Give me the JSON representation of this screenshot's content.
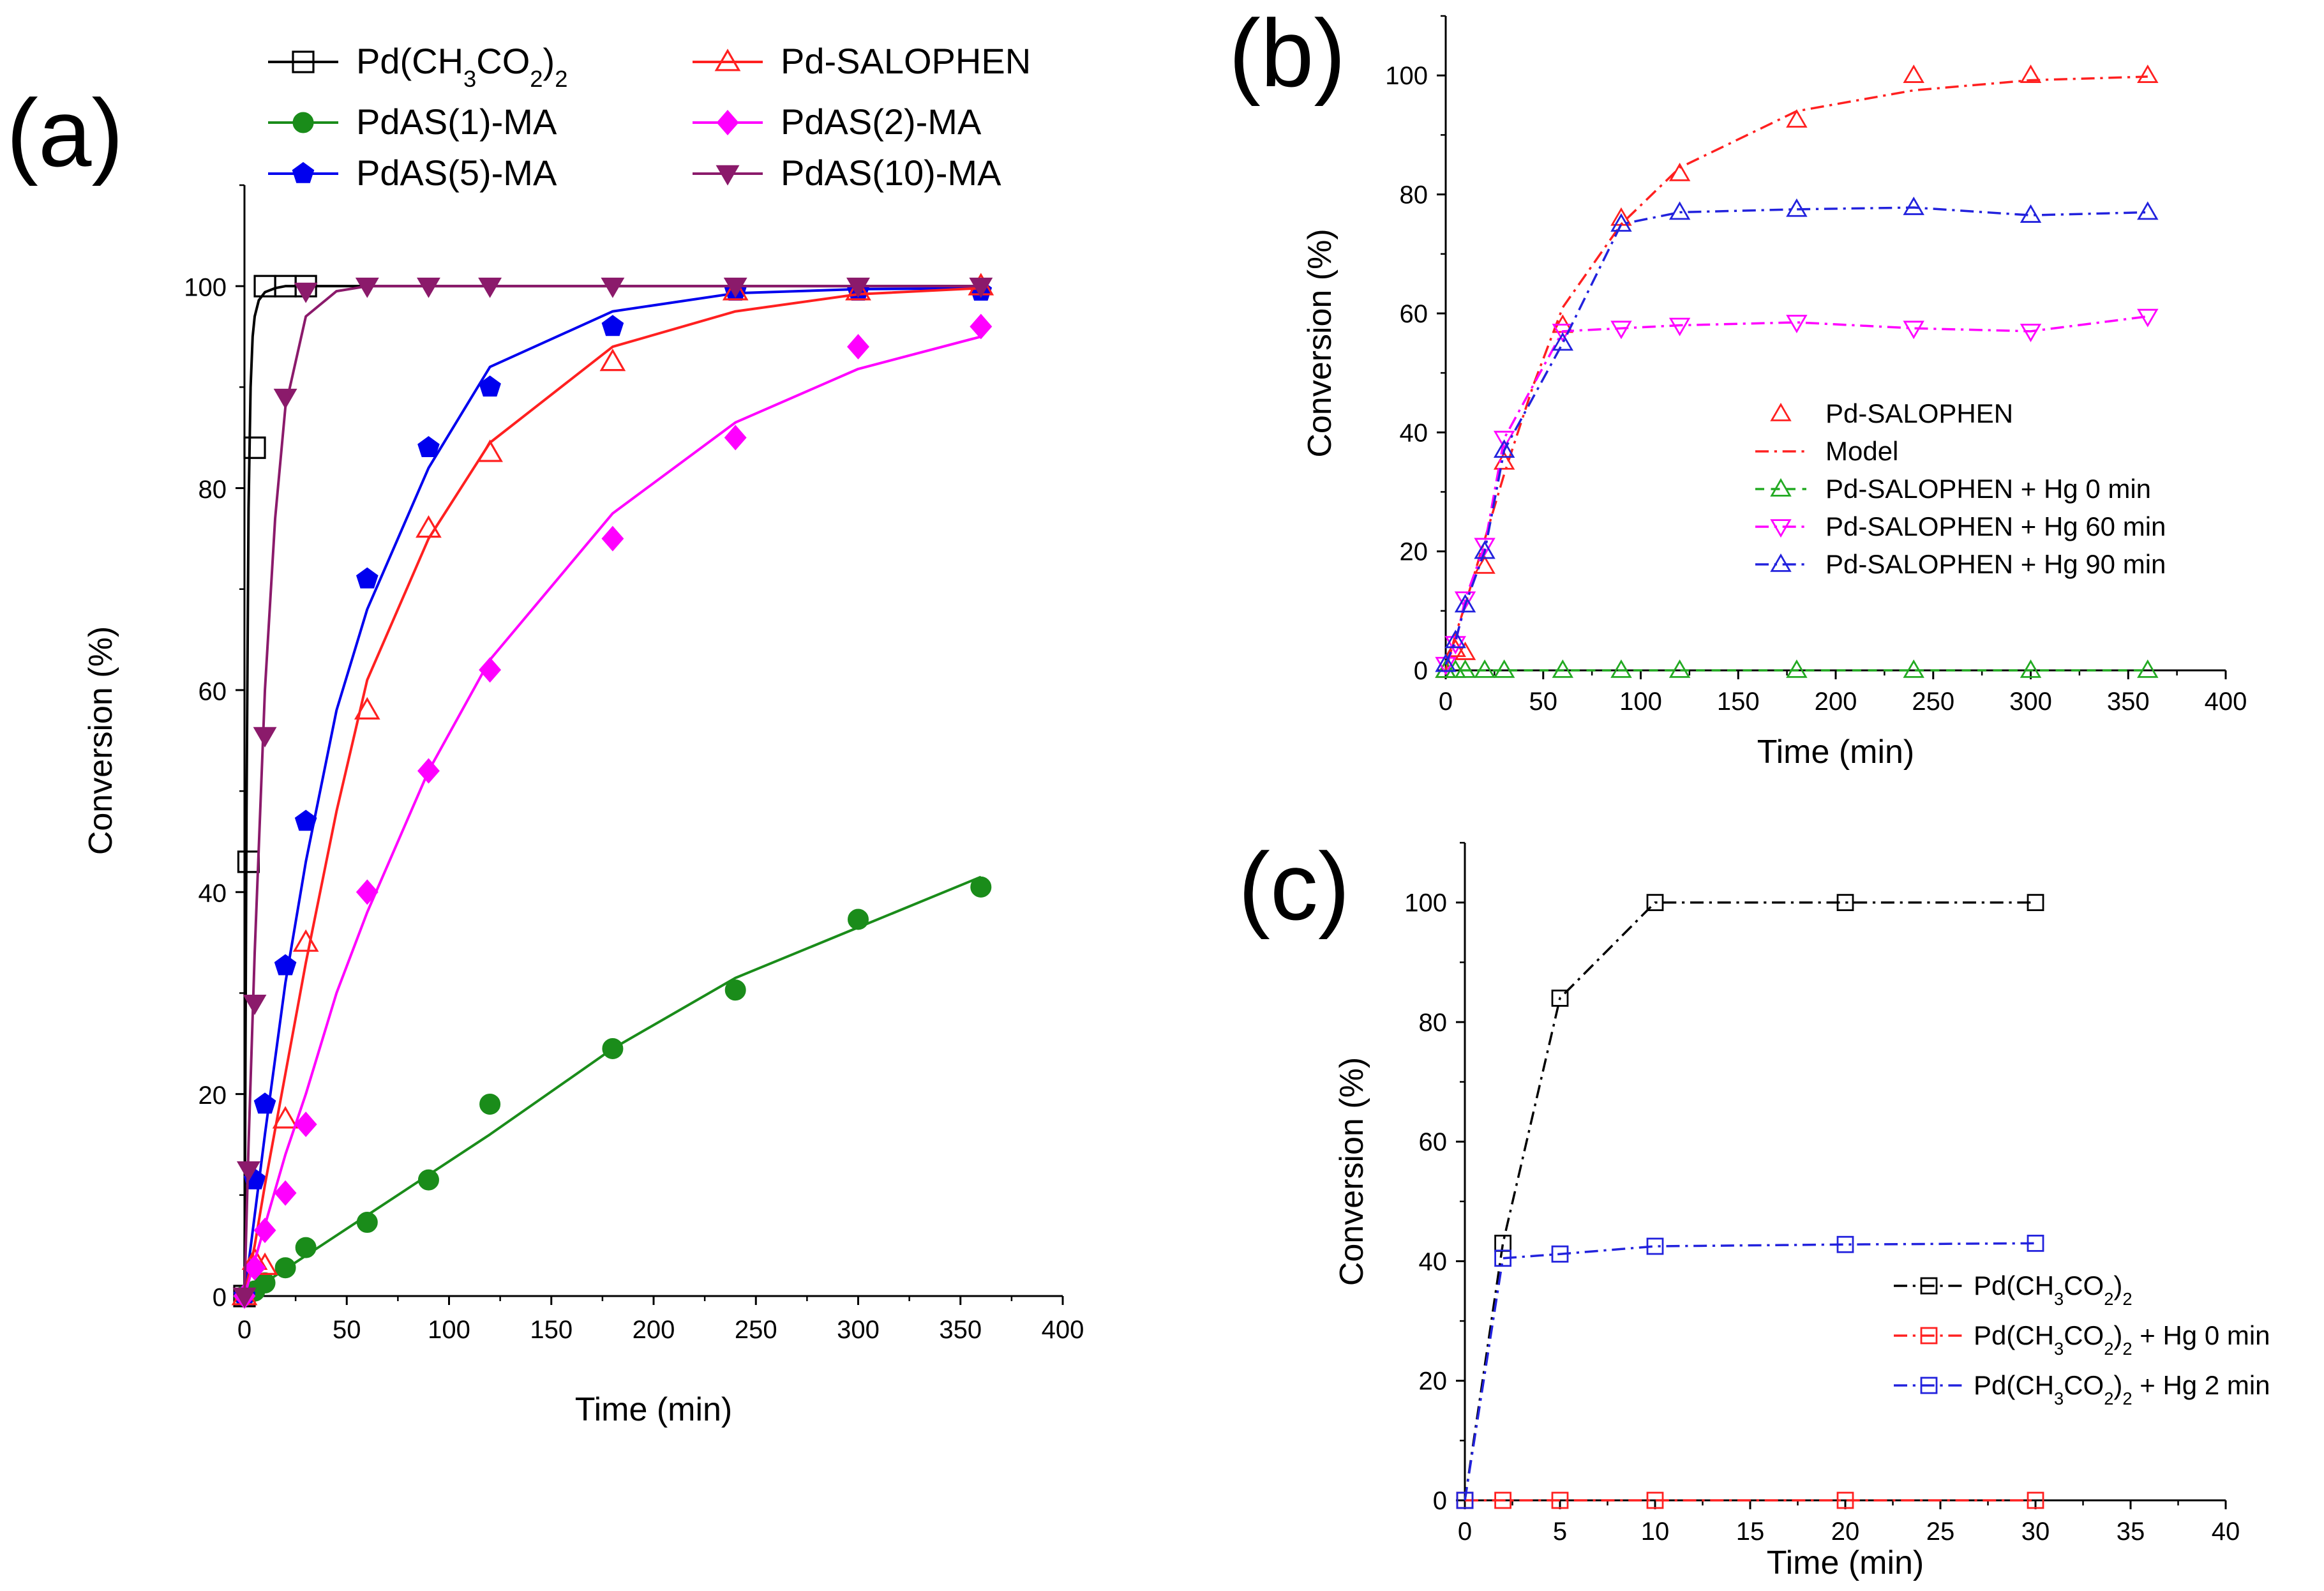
{
  "chart_data": [
    {
      "panel": "(a)",
      "type": "scatter",
      "xlabel": "Time (min)",
      "ylabel": "Conversion (%)",
      "xlim": [
        0,
        400
      ],
      "ylim": [
        0,
        110
      ],
      "xticks": [
        0,
        50,
        100,
        150,
        200,
        250,
        300,
        350,
        400
      ],
      "yticks": [
        0,
        20,
        40,
        60,
        80,
        100
      ],
      "legend": "top, two columns",
      "series": [
        {
          "name": "Pd(CH3CO2)2",
          "label_main": "Pd(CH",
          "label_sub1": "3",
          "label_mid": "CO",
          "label_sub2": "2",
          "label_close": ")",
          "label_sub3": "2",
          "marker": "square-open",
          "color": "#000000",
          "x": [
            0,
            2,
            5,
            10,
            20,
            30
          ],
          "y": [
            0,
            43,
            84,
            100,
            100,
            100
          ],
          "fit_x": [
            0,
            1,
            2,
            3,
            4,
            5,
            7,
            10,
            15,
            20,
            30,
            360
          ],
          "fit_y": [
            0,
            48,
            78,
            90,
            95,
            97,
            98.6,
            99.4,
            99.8,
            100,
            100,
            100
          ]
        },
        {
          "name": "PdAS(1)-MA",
          "marker": "circle-filled",
          "color": "#1a8c1a",
          "x": [
            0,
            5,
            10,
            20,
            30,
            60,
            90,
            120,
            180,
            240,
            300,
            360
          ],
          "y": [
            0,
            0.5,
            1.3,
            2.8,
            4.8,
            7.3,
            11.5,
            19,
            24.5,
            30.3,
            37.3,
            40.5
          ],
          "fit_x": [
            0,
            60,
            120,
            180,
            240,
            300,
            360
          ],
          "fit_y": [
            0,
            8,
            16,
            24.5,
            31.5,
            36.5,
            41.5
          ]
        },
        {
          "name": "PdAS(5)-MA",
          "marker": "pentagon-filled",
          "color": "#0000ee",
          "x": [
            0,
            5,
            10,
            20,
            30,
            60,
            90,
            120,
            180,
            240,
            300,
            360
          ],
          "y": [
            0,
            11.5,
            19,
            32.7,
            47,
            71,
            84,
            90,
            96,
            99.5,
            99.5,
            99.5
          ],
          "fit_x": [
            0,
            5,
            10,
            20,
            30,
            45,
            60,
            90,
            120,
            180,
            240,
            300,
            360
          ],
          "fit_y": [
            0,
            8,
            16,
            31,
            43,
            58,
            68,
            82,
            92,
            97.5,
            99.3,
            99.7,
            99.8
          ]
        },
        {
          "name": "Pd-SALOPHEN",
          "marker": "triangle-open",
          "color": "#ff2020",
          "x": [
            0,
            5,
            10,
            20,
            30,
            60,
            90,
            120,
            180,
            240,
            300,
            360
          ],
          "y": [
            0,
            3.5,
            3,
            17.5,
            35,
            58,
            76,
            83.5,
            92.5,
            99.5,
            99.5,
            100
          ],
          "fit_x": [
            0,
            5,
            10,
            20,
            30,
            45,
            60,
            90,
            120,
            180,
            240,
            300,
            360
          ],
          "fit_y": [
            0,
            5,
            11,
            22,
            33,
            48,
            61,
            75,
            84.5,
            94,
            97.5,
            99.2,
            99.8
          ]
        },
        {
          "name": "PdAS(2)-MA",
          "marker": "diamond-filled",
          "color": "#ff00ff",
          "x": [
            0,
            5,
            10,
            20,
            30,
            60,
            90,
            120,
            180,
            240,
            300,
            360
          ],
          "y": [
            0,
            2.8,
            6.5,
            10.2,
            17,
            40,
            52,
            62,
            75,
            85,
            94,
            96
          ],
          "fit_x": [
            0,
            10,
            20,
            30,
            45,
            60,
            90,
            120,
            180,
            240,
            300,
            360
          ],
          "fit_y": [
            0,
            7,
            14,
            20,
            30,
            38,
            52,
            63,
            77.5,
            86.5,
            91.8,
            95
          ]
        },
        {
          "name": "PdAS(10)-MA",
          "marker": "triangle-down-filled",
          "color": "#8b1a6b",
          "x": [
            0,
            2,
            5,
            10,
            20,
            30,
            60,
            90,
            120,
            180,
            240,
            300,
            360
          ],
          "y": [
            0,
            12.5,
            29,
            55.5,
            89,
            99.5,
            100,
            100,
            100,
            100,
            100,
            100,
            100
          ],
          "fit_x": [
            0,
            2,
            5,
            10,
            15,
            20,
            30,
            45,
            60,
            90,
            360
          ],
          "fit_y": [
            0,
            15,
            34,
            60,
            77,
            88,
            97,
            99.5,
            100,
            100,
            100
          ]
        }
      ]
    },
    {
      "panel": "(b)",
      "type": "line",
      "xlabel": "Time (min)",
      "ylabel": "Conversion (%)",
      "xlim": [
        0,
        400
      ],
      "ylim": [
        0,
        110
      ],
      "xticks": [
        0,
        50,
        100,
        150,
        200,
        250,
        300,
        350,
        400
      ],
      "yticks": [
        0,
        20,
        40,
        60,
        80,
        100
      ],
      "legend": "center",
      "series": [
        {
          "name": "Pd-SALOPHEN",
          "marker": "triangle-open",
          "color": "#ff2020",
          "line": "none",
          "x": [
            0,
            5,
            10,
            20,
            30,
            60,
            90,
            120,
            180,
            240,
            300,
            360
          ],
          "y": [
            0,
            3.5,
            3,
            17.5,
            35,
            58,
            76,
            83.5,
            92.5,
            100,
            100,
            100
          ]
        },
        {
          "name": "Model",
          "marker": "none",
          "color": "#ff2020",
          "line": "dash-dot",
          "x": [
            0,
            5,
            10,
            20,
            30,
            45,
            60,
            90,
            120,
            180,
            240,
            300,
            360
          ],
          "y": [
            0,
            6,
            11,
            22,
            33,
            48,
            61,
            75,
            84.5,
            94,
            97.5,
            99.2,
            99.8
          ]
        },
        {
          "name": "Pd-SALOPHEN + Hg 0 min",
          "marker": "triangle-open",
          "color": "#22aa22",
          "line": "dash",
          "x": [
            0,
            5,
            10,
            20,
            30,
            60,
            90,
            120,
            180,
            240,
            300,
            360
          ],
          "y": [
            0,
            0,
            0,
            0,
            0,
            0,
            0,
            0,
            0,
            0,
            0,
            0
          ]
        },
        {
          "name": "Pd-SALOPHEN + Hg 60 min",
          "marker": "triangle-down-open",
          "color": "#ff00ff",
          "line": "dash-dot",
          "x": [
            0,
            5,
            10,
            20,
            30,
            60,
            90,
            120,
            180,
            240,
            300,
            360
          ],
          "y": [
            1,
            4.5,
            12,
            21,
            39,
            57,
            57.5,
            58,
            58.5,
            57.5,
            57,
            59.5
          ]
        },
        {
          "name": "Pd-SALOPHEN + Hg 90 min",
          "marker": "triangle-open",
          "color": "#2222dd",
          "line": "dash-dot",
          "x": [
            0,
            5,
            10,
            20,
            30,
            60,
            90,
            120,
            180,
            240,
            300,
            360
          ],
          "y": [
            1,
            5,
            11,
            20,
            37,
            55,
            75,
            77,
            77.5,
            77.8,
            76.5,
            77
          ]
        }
      ]
    },
    {
      "panel": "(c)",
      "type": "line",
      "xlabel": "Time (min)",
      "ylabel": "Conversion (%)",
      "xlim": [
        0,
        40
      ],
      "ylim": [
        0,
        110
      ],
      "xticks": [
        0,
        5,
        10,
        15,
        20,
        25,
        30,
        35,
        40
      ],
      "yticks": [
        0,
        20,
        40,
        60,
        80,
        100
      ],
      "legend": "bottom-right",
      "series": [
        {
          "name": "Pd(CH3CO2)2",
          "label_main": "Pd(CH",
          "label_sub1": "3",
          "label_mid": "CO",
          "label_sub2": "2",
          "label_close": ")",
          "label_sub3": "2",
          "label_tail": "",
          "marker": "square-open",
          "color": "#000000",
          "line": "dash-dot",
          "x": [
            0,
            2,
            5,
            10,
            20,
            30
          ],
          "y": [
            0,
            43,
            84,
            100,
            100,
            100
          ]
        },
        {
          "name": "Pd(CH3CO2)2 + Hg 0 min",
          "label_main": "Pd(CH",
          "label_sub1": "3",
          "label_mid": "CO",
          "label_sub2": "2",
          "label_close": ")",
          "label_sub3": "2",
          "label_tail": " + Hg 0 min",
          "marker": "square-open",
          "color": "#ff2020",
          "line": "dash-dot",
          "x": [
            0,
            2,
            5,
            10,
            20,
            30
          ],
          "y": [
            0,
            0,
            0,
            0,
            0,
            0
          ]
        },
        {
          "name": "Pd(CH3CO2)2 + Hg 2 min",
          "label_main": "Pd(CH",
          "label_sub1": "3",
          "label_mid": "CO",
          "label_sub2": "2",
          "label_close": ")",
          "label_sub3": "2",
          "label_tail": " + Hg 2 min",
          "marker": "square-open",
          "color": "#2222dd",
          "line": "dash-dot",
          "x": [
            0,
            2,
            5,
            10,
            20,
            30
          ],
          "y": [
            0,
            40.5,
            41.2,
            42.5,
            42.8,
            43
          ]
        }
      ]
    }
  ]
}
